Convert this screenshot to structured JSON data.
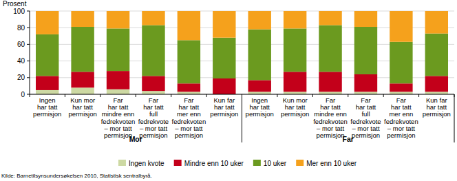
{
  "chart_data": {
    "type": "bar",
    "stacked": true,
    "grid": true,
    "legend": "bottom",
    "y_label": "Prosent",
    "source": "Kilde: Barnetilsynsundersøkelsen 2010, Statistisk sentralbyrå.",
    "groups": [
      "Mor",
      "Far"
    ],
    "categories": [
      "Ingen\nhar tatt\npermisjon",
      "Kun mor\nhar tatt\npermisjon",
      "Far\nhar tatt\nmindre enn\nfedrekvoten\n– mor tatt\npermisjon",
      "Far\nhar tatt\nfull\nfedrekvote\n– mor tatt\npermisjon",
      "Far\nhar tatt\nmer enn\nfedrekvoten\n– mor tatt\npermisjon",
      "Kun far\nhar tatt\npermisjon",
      "Ingen\nhar tatt\npermisjon",
      "Kun mor\nhar tatt\npermisjon",
      "Far\nhar tatt\nmindre enn\nfedrekvoten\n– mor tatt\npermisjon",
      "Far\nhar tatt\nfull\nfedrekvote\n– mor tatt\npermisjon",
      "Far\nhar tatt\nmer enn\nfedrekvoten\n– mor tatt\npermisjon",
      "Kun far\nhar tatt\npermisjon"
    ],
    "series": [
      {
        "name": "Ingen kvote",
        "color": "#cdd9a3",
        "values": [
          5,
          8,
          6,
          4,
          3,
          0,
          3,
          3,
          3,
          3,
          3,
          3
        ]
      },
      {
        "name": "Mindre enn 10 uker",
        "color": "#c3001a",
        "values": [
          17,
          19,
          22,
          18,
          10,
          19,
          14,
          24,
          24,
          21,
          10,
          19
        ]
      },
      {
        "name": "10 uker",
        "color": "#6b9a1f",
        "values": [
          50,
          54,
          51,
          61,
          52,
          49,
          61,
          52,
          56,
          57,
          50,
          51
        ]
      },
      {
        "name": "Mer enn 10 uker",
        "color": "#f5a11c",
        "values": [
          28,
          19,
          21,
          17,
          35,
          32,
          22,
          21,
          17,
          19,
          37,
          27
        ]
      }
    ],
    "ylim": [
      0,
      100
    ],
    "yticks": [
      0,
      20,
      40,
      60,
      80,
      100
    ]
  }
}
